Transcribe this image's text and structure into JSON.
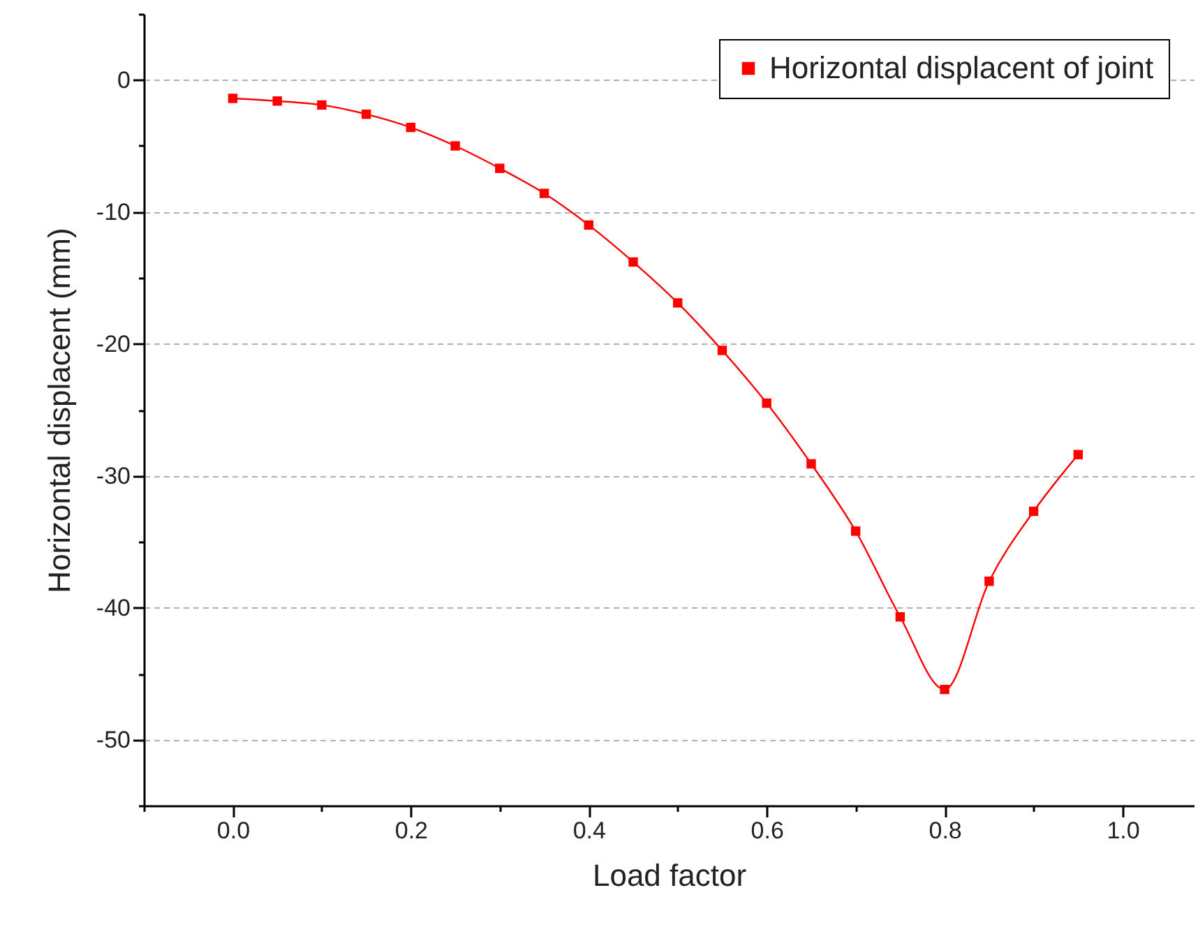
{
  "chart_data": {
    "type": "line",
    "xlabel": "Load factor",
    "ylabel": "Horizontal displacent (mm)",
    "x": [
      0,
      0.05,
      0.1,
      0.15,
      0.2,
      0.25,
      0.3,
      0.35,
      0.4,
      0.45,
      0.5,
      0.55,
      0.6,
      0.65,
      0.7,
      0.75,
      0.8,
      0.85,
      0.9,
      0.95
    ],
    "series": [
      {
        "name": "Horizontal displacent of joint",
        "color": "#ff0000",
        "values": [
          -1.4,
          -1.6,
          -1.9,
          -2.6,
          -3.6,
          -5.0,
          -6.7,
          -8.6,
          -11.0,
          -13.8,
          -16.9,
          -20.5,
          -24.5,
          -29.1,
          -34.2,
          -40.7,
          -46.2,
          -38.0,
          -32.7,
          -28.4
        ]
      }
    ],
    "xlim": [
      -0.1,
      1.08
    ],
    "xticks": [
      {
        "value": -0.1,
        "label": null
      },
      {
        "value": 0.0,
        "label": "0.0"
      },
      {
        "value": 0.1,
        "label": null
      },
      {
        "value": 0.2,
        "label": "0.2"
      },
      {
        "value": 0.3,
        "label": null
      },
      {
        "value": 0.4,
        "label": "0.4"
      },
      {
        "value": 0.5,
        "label": null
      },
      {
        "value": 0.6,
        "label": "0.6"
      },
      {
        "value": 0.7,
        "label": null
      },
      {
        "value": 0.8,
        "label": "0.8"
      },
      {
        "value": 0.9,
        "label": null
      },
      {
        "value": 1.0,
        "label": "1.0"
      }
    ],
    "ylim": [
      -55,
      5
    ],
    "yticks": [
      {
        "value": -55,
        "label": null
      },
      -50,
      {
        "value": -45,
        "label": null
      },
      -40,
      {
        "value": -35,
        "label": null
      },
      -30,
      {
        "value": -25,
        "label": null
      },
      -20,
      {
        "value": -15,
        "label": null
      },
      -10,
      {
        "value": -5,
        "label": null
      },
      0,
      {
        "value": 5,
        "label": null
      }
    ],
    "grid": "y",
    "legend": "top right",
    "marker": "square",
    "line_style": "solid"
  }
}
